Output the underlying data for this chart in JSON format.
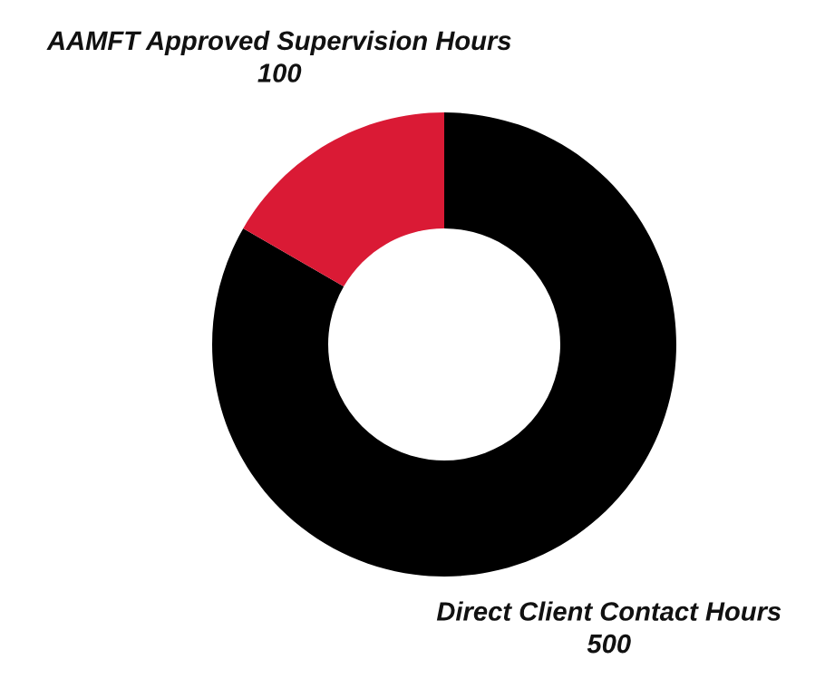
{
  "chart_data": {
    "type": "donut",
    "categories": [
      "Direct Client Contact Hours",
      "AAMFT Approved Supervision Hours"
    ],
    "values": [
      500,
      100
    ],
    "colors": [
      "#000000",
      "#da1a35"
    ],
    "data_labels": true
  }
}
